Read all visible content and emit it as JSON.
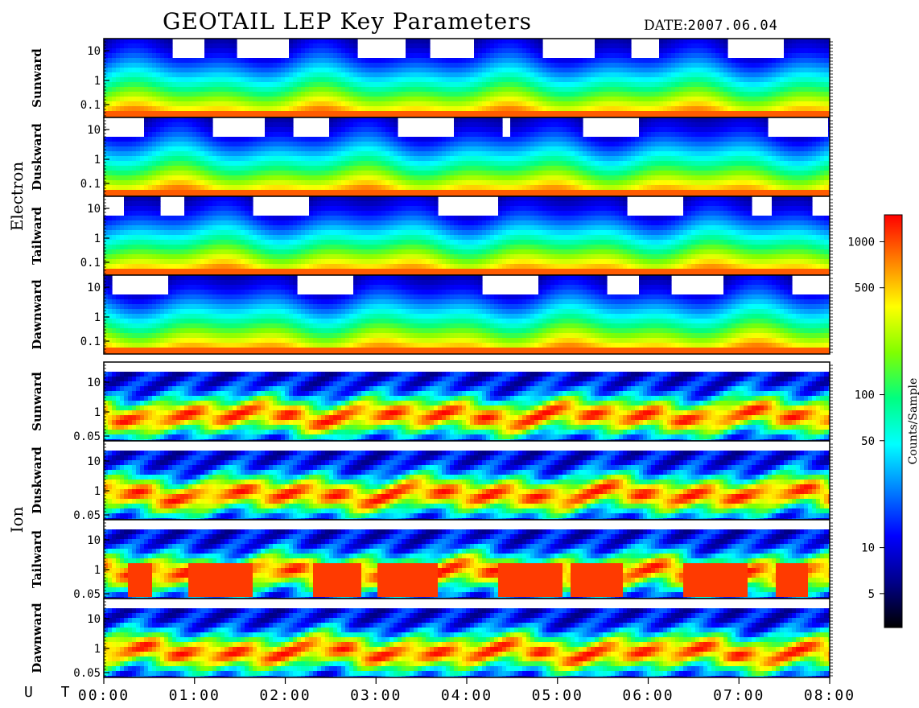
{
  "header": {
    "title": "GEOTAIL LEP Key Parameters",
    "date_label": "DATE:",
    "date_value": "2007.06.04"
  },
  "footer": {
    "ut_label": "U T"
  },
  "chart_data": {
    "type": "heatmap",
    "title": "GEOTAIL LEP Key Parameters",
    "x_axis": {
      "ticks": [
        "00:00",
        "01:00",
        "02:00",
        "03:00",
        "04:00",
        "05:00",
        "06:00",
        "07:00",
        "08:00"
      ],
      "range_hours": [
        0,
        8
      ]
    },
    "species": [
      {
        "name": "Electron",
        "panels": [
          {
            "label": "Sunward",
            "y_ticks": [
              "10",
              "1",
              "0.1"
            ],
            "y_tick_values": [
              10,
              1,
              0.1
            ],
            "log_scale": true
          },
          {
            "label": "Duskward",
            "y_ticks": [
              "10",
              "1",
              "0.1"
            ],
            "y_tick_values": [
              10,
              1,
              0.1
            ],
            "log_scale": true
          },
          {
            "label": "Tailward",
            "y_ticks": [
              "10",
              "1",
              "0.1"
            ],
            "y_tick_values": [
              10,
              1,
              0.1
            ],
            "log_scale": true
          },
          {
            "label": "Dawnward",
            "y_ticks": [
              "10",
              "1",
              "0.1"
            ],
            "y_tick_values": [
              10,
              1,
              0.1
            ],
            "log_scale": true
          }
        ]
      },
      {
        "name": "Ion",
        "panels": [
          {
            "label": "Sunward",
            "y_ticks": [
              "10",
              "1",
              "0.05"
            ],
            "y_tick_values": [
              10,
              1,
              0.05
            ],
            "log_scale": true
          },
          {
            "label": "Duskward",
            "y_ticks": [
              "10",
              "1",
              "0.05"
            ],
            "y_tick_values": [
              10,
              1,
              0.05
            ],
            "log_scale": true
          },
          {
            "label": "Tailward",
            "y_ticks": [
              "10",
              "1",
              "0.05"
            ],
            "y_tick_values": [
              10,
              1,
              0.05
            ],
            "log_scale": true
          },
          {
            "label": "Dawnward",
            "y_ticks": [
              "10",
              "1",
              "0.05"
            ],
            "y_tick_values": [
              10,
              1,
              0.05
            ],
            "log_scale": true
          }
        ]
      }
    ],
    "colorbar": {
      "label": "Counts/Sample",
      "ticks": [
        "1000",
        "500",
        "100",
        "50",
        "10",
        "5"
      ],
      "tick_values": [
        1000,
        500,
        100,
        50,
        10,
        5
      ],
      "range": [
        3,
        1500
      ],
      "log_scale": true,
      "colormap": [
        "#000000",
        "#00008b",
        "#0000ff",
        "#0080ff",
        "#00ffff",
        "#00ff80",
        "#80ff00",
        "#ffff00",
        "#ff8000",
        "#ff0000"
      ]
    }
  }
}
